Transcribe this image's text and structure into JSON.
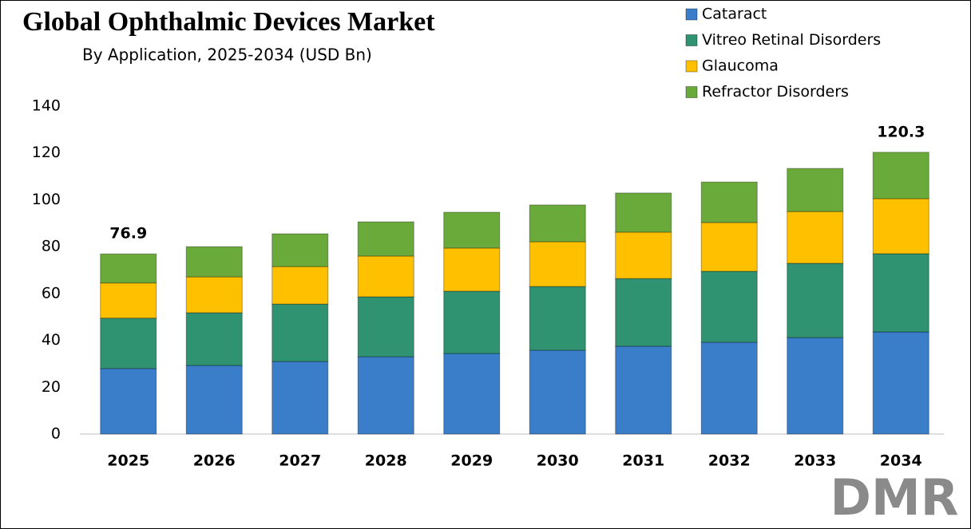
{
  "chart_data": {
    "type": "stacked-bar",
    "title": "Global Ophthalmic Devices Market",
    "subtitle": "By Application, 2025-2034 (USD Bn)",
    "categories": [
      "2025",
      "2026",
      "2027",
      "2028",
      "2029",
      "2030",
      "2031",
      "2032",
      "2033",
      "2034"
    ],
    "series": [
      {
        "name": "Cataract",
        "color": "#3a7dc9",
        "values": [
          28,
          29.3,
          31,
          33,
          34.4,
          35.8,
          37.5,
          39.2,
          41.2,
          43.6
        ]
      },
      {
        "name": "Vitreo Retinal Disorders",
        "color": "#2f9270",
        "values": [
          21.5,
          22.5,
          24.5,
          25.6,
          26.6,
          27.2,
          28.9,
          30.3,
          31.7,
          33.4
        ]
      },
      {
        "name": "Glaucoma",
        "color": "#ffc000",
        "values": [
          15,
          15.3,
          16,
          17.4,
          18.4,
          19.1,
          19.8,
          20.8,
          22.1,
          23.5
        ]
      },
      {
        "name": "Refractor Disorders",
        "color": "#6aaa3a",
        "values": [
          12.4,
          12.9,
          14,
          14.6,
          15.3,
          15.7,
          16.7,
          17.3,
          18.4,
          19.8
        ]
      }
    ],
    "annotations": [
      {
        "category": "2025",
        "value": 76.9
      },
      {
        "category": "2034",
        "value": 120.3
      }
    ],
    "ylim": [
      0,
      140
    ],
    "yticks": [
      0,
      20,
      40,
      60,
      80,
      100,
      120,
      140
    ],
    "grid": false,
    "legend": "top-right"
  },
  "logo": "DMR"
}
